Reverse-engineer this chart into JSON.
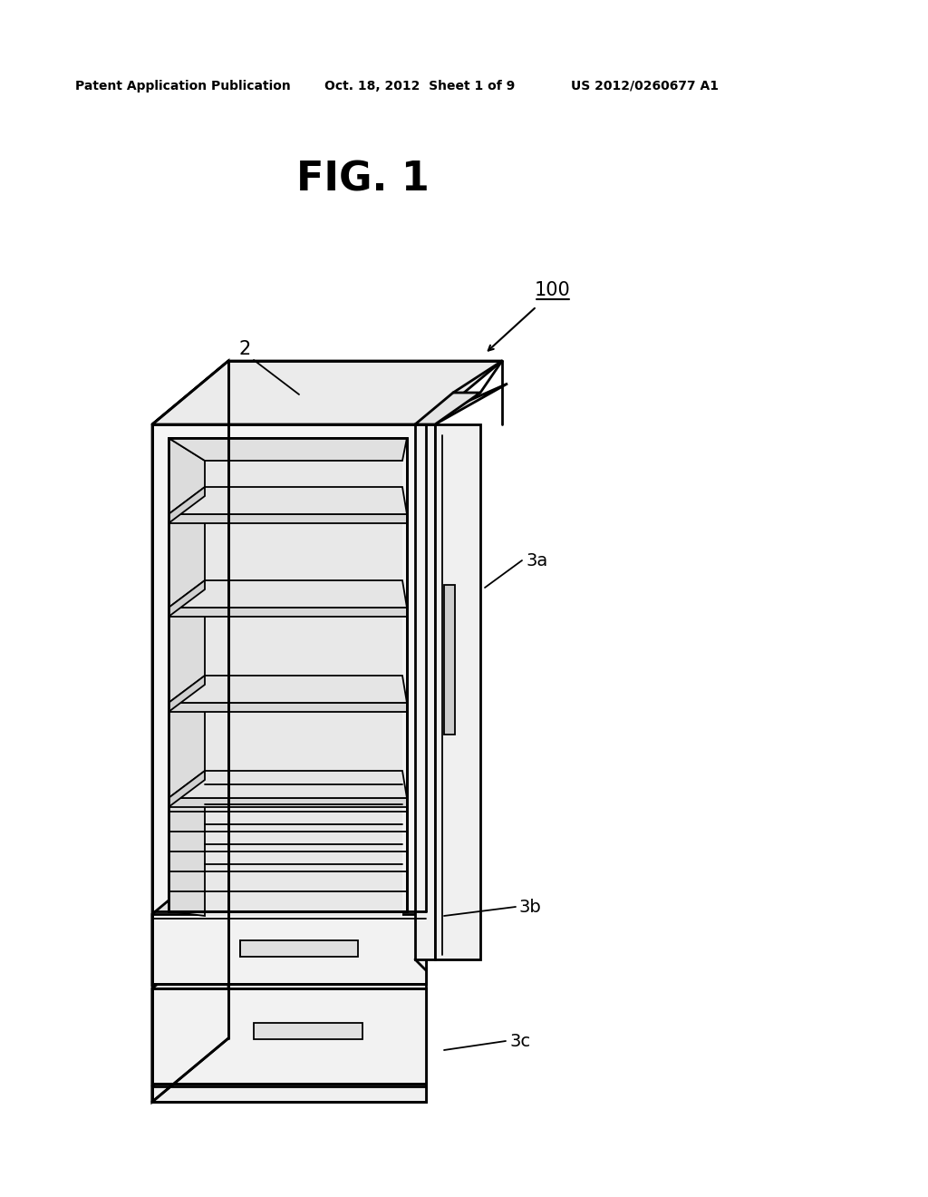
{
  "bg_color": "#ffffff",
  "line_color": "#000000",
  "header_left": "Patent Application Publication",
  "header_mid": "Oct. 18, 2012  Sheet 1 of 9",
  "header_right": "US 2012/0260677 A1",
  "fig_label": "FIG. 1",
  "label_100": "100",
  "label_2": "2",
  "label_3a": "3a",
  "label_3b": "3b",
  "label_3c": "3c",
  "lw_main": 2.0,
  "lw_thin": 1.3,
  "lw_inner": 1.0,
  "face_front": "#f5f5f5",
  "face_left": "#e0e0e0",
  "face_top": "#ebebeb",
  "face_interior": "#eeeeee",
  "face_shelf": "#d8d8d8",
  "face_door": "#f0f0f0",
  "face_door_side": "#d5d5d5",
  "face_door_top": "#e5e5e5"
}
